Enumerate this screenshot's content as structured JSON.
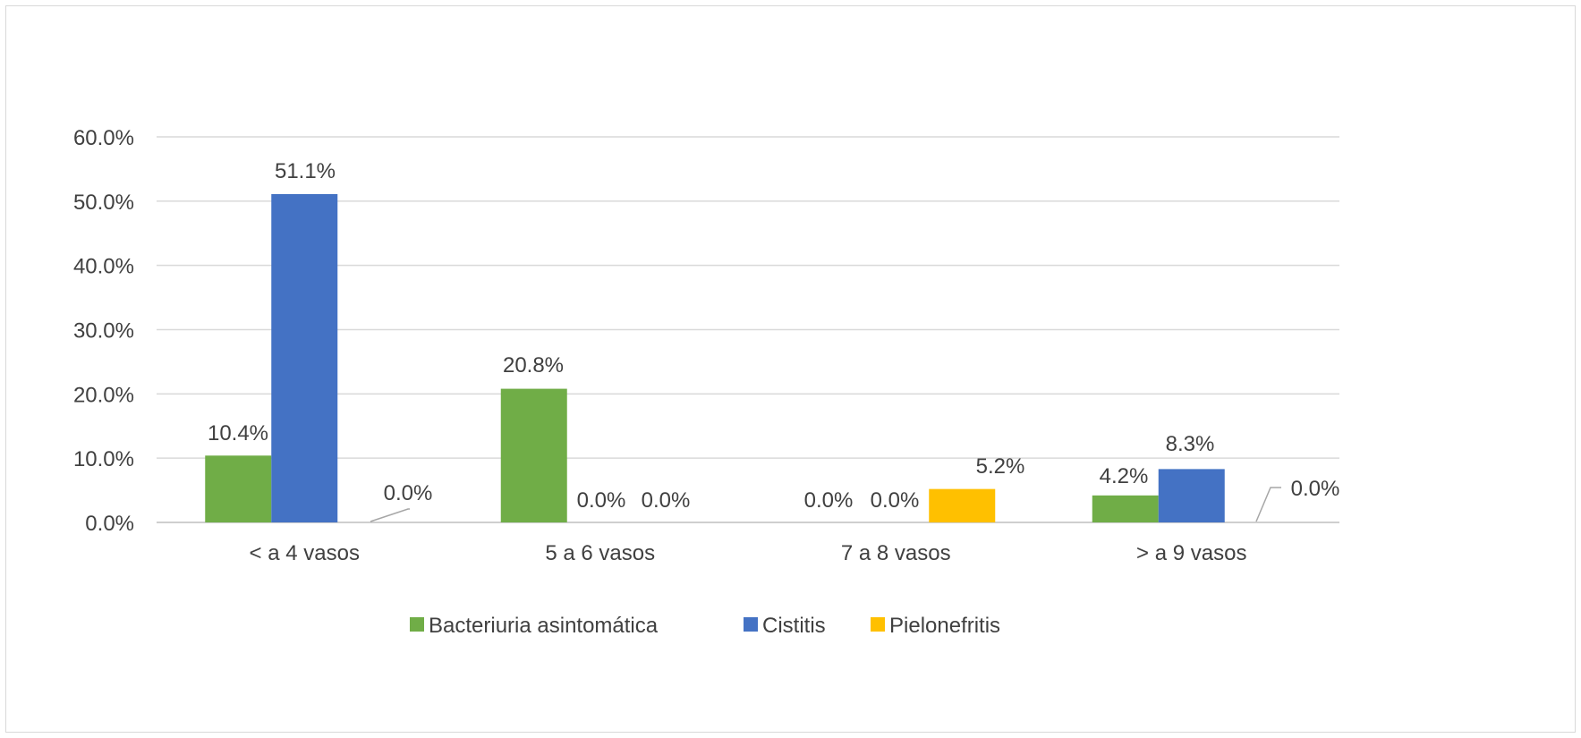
{
  "chart_data": {
    "type": "bar",
    "title": "",
    "xlabel": "",
    "ylabel": "",
    "categories": [
      "< a 4 vasos",
      "5 a 6 vasos",
      "7 a 8 vasos",
      "> a 9 vasos"
    ],
    "series": [
      {
        "name": "Bacteriuria asintomática",
        "color": "#70ad47",
        "values": [
          10.4,
          20.8,
          0.0,
          4.2
        ]
      },
      {
        "name": "Cistitis",
        "color": "#4472c4",
        "values": [
          51.1,
          0.0,
          0.0,
          8.3
        ]
      },
      {
        "name": "Pielonefritis",
        "color": "#ffc000",
        "values": [
          0.0,
          0.0,
          5.2,
          0.0
        ]
      }
    ],
    "data_labels": [
      [
        "10.4%",
        "51.1%",
        "0.0%"
      ],
      [
        "20.8%",
        "0.0%",
        "0.0%"
      ],
      [
        "0.0%",
        "0.0%",
        "5.2%"
      ],
      [
        "4.2%",
        "8.3%",
        "0.0%"
      ]
    ],
    "y_ticks": [
      "0.0%",
      "10.0%",
      "20.0%",
      "30.0%",
      "40.0%",
      "50.0%",
      "60.0%"
    ],
    "ylim": [
      0,
      60
    ],
    "grid": true,
    "legend_position": "bottom"
  }
}
